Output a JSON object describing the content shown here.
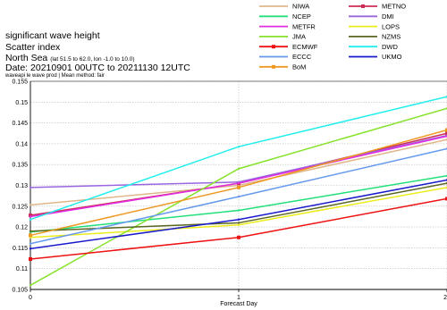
{
  "header": {
    "line1": "significant wave height",
    "line2": "Scatter index",
    "region_name": "North Sea",
    "region_coords": "(lat  51.5 to 62.0, lon  -1.0 to  10.0)",
    "date_range": "Date: 20210901 00UTC to 20211130 12UTC",
    "method_note": "waveapi le wave prod | Mean method: fair"
  },
  "colors": {
    "NIWA": "#dfb78a",
    "METNO": "#cc2d55",
    "NCEP": "#22e07a",
    "DMI": "#9966e0",
    "METFR": "#e22ce2",
    "LOPS": "#ecec1c",
    "JMA": "#86e22c",
    "NZMS": "#5a6622",
    "ECMWF": "#ee1111",
    "DWD": "#22eeee",
    "ECCC": "#6699ee",
    "UKMO": "#1a1acc",
    "BoM": "#ee9922"
  },
  "chart_data": {
    "type": "line",
    "title": "",
    "xlabel": "Forecast Day",
    "ylabel": "",
    "x": [
      0,
      1,
      2
    ],
    "x_tick_labels": [
      "0",
      "1",
      "2"
    ],
    "xlim": [
      0,
      2
    ],
    "ylim": [
      0.105,
      0.155
    ],
    "y_ticks": [
      0.105,
      0.11,
      0.115,
      0.12,
      0.125,
      0.13,
      0.135,
      0.14,
      0.145,
      0.15,
      0.155
    ],
    "y_tick_labels": [
      "0.105",
      "0.11",
      "0.115",
      "0.12",
      "0.125",
      "0.13",
      "0.135",
      "0.14",
      "0.145",
      "0.15",
      "0.155"
    ],
    "grid": true,
    "legend_placement": "top-right",
    "series": [
      {
        "name": "NIWA",
        "values": [
          0.1253,
          0.13,
          0.141
        ]
      },
      {
        "name": "METNO",
        "values": [
          0.1228,
          0.1305,
          0.1425
        ]
      },
      {
        "name": "NCEP",
        "values": [
          0.1188,
          0.124,
          0.1323
        ]
      },
      {
        "name": "DMI",
        "values": [
          0.1295,
          0.1308,
          0.142
        ]
      },
      {
        "name": "METFR",
        "values": [
          0.1225,
          0.1305,
          0.1418
        ]
      },
      {
        "name": "LOPS",
        "values": [
          0.1175,
          0.1205,
          0.1295
        ]
      },
      {
        "name": "JMA",
        "values": [
          0.106,
          0.134,
          0.1485
        ]
      },
      {
        "name": "NZMS",
        "values": [
          0.119,
          0.121,
          0.1305
        ]
      },
      {
        "name": "ECMWF",
        "values": [
          0.1123,
          0.1175,
          0.1268
        ]
      },
      {
        "name": "DWD",
        "values": [
          0.1218,
          0.1393,
          0.1513
        ]
      },
      {
        "name": "ECCC",
        "values": [
          0.116,
          0.1273,
          0.1388
        ]
      },
      {
        "name": "UKMO",
        "values": [
          0.1148,
          0.1218,
          0.1313
        ]
      },
      {
        "name": "BoM",
        "values": [
          0.118,
          0.1295,
          0.1433
        ]
      }
    ],
    "legend_entries": [
      {
        "name": "NIWA",
        "marker": "none"
      },
      {
        "name": "METNO",
        "marker": "square"
      },
      {
        "name": "NCEP",
        "marker": "none"
      },
      {
        "name": "DMI",
        "marker": "none"
      },
      {
        "name": "METFR",
        "marker": "none"
      },
      {
        "name": "LOPS",
        "marker": "none"
      },
      {
        "name": "JMA",
        "marker": "none"
      },
      {
        "name": "NZMS",
        "marker": "none"
      },
      {
        "name": "ECMWF",
        "marker": "square"
      },
      {
        "name": "DWD",
        "marker": "none"
      },
      {
        "name": "ECCC",
        "marker": "none"
      },
      {
        "name": "UKMO",
        "marker": "none"
      },
      {
        "name": "BoM",
        "marker": "square"
      }
    ]
  }
}
